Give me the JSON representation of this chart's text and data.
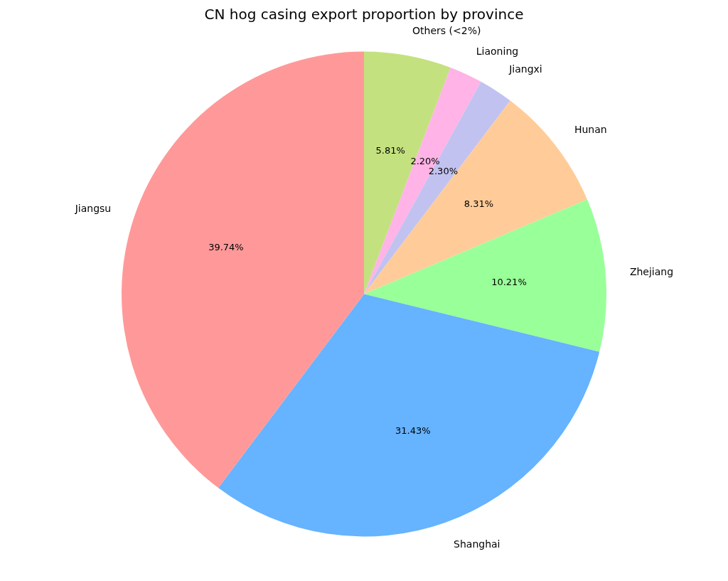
{
  "chart_data": {
    "type": "pie",
    "title": "CN hog casing export proportion by province",
    "categories": [
      "Others (<2%)",
      "Liaoning",
      "Jiangxi",
      "Hunan",
      "Zhejiang",
      "Shanghai",
      "Jiangsu"
    ],
    "values": [
      5.81,
      2.2,
      2.3,
      8.31,
      10.21,
      31.43,
      39.74
    ],
    "value_labels": [
      "5.81%",
      "2.20%",
      "2.30%",
      "8.31%",
      "10.21%",
      "31.43%",
      "39.74%"
    ],
    "colors": [
      "#c4e17f",
      "#ffb3e6",
      "#c2c2f0",
      "#ffcc99",
      "#99ff99",
      "#66b3ff",
      "#ff9999"
    ],
    "legend": false
  }
}
